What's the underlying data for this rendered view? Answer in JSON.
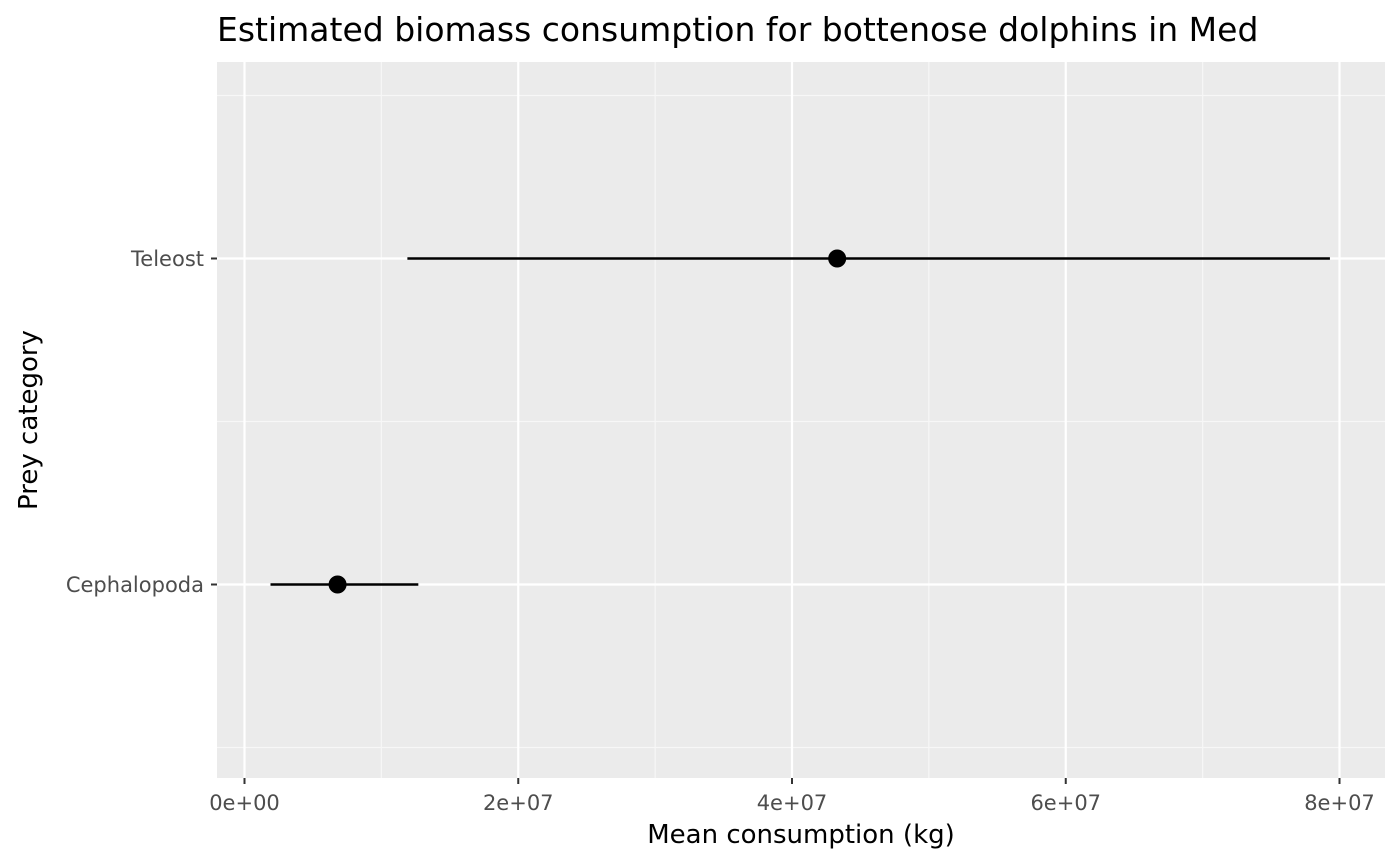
{
  "chart_data": {
    "type": "pointrange",
    "title": "Estimated biomass consumption for bottenose dolphins in Med",
    "xlabel": "Mean consumption (kg)",
    "ylabel": "Prey category",
    "orientation": "horizontal",
    "xlim": [
      -2000000,
      83000000
    ],
    "x_ticks": [
      0,
      20000000,
      40000000,
      60000000,
      80000000
    ],
    "x_tick_labels": [
      "0e+00",
      "2e+07",
      "4e+07",
      "6e+07",
      "8e+07"
    ],
    "categories": [
      "Cephalopoda",
      "Teleost"
    ],
    "points": [
      {
        "category": "Cephalopoda",
        "mean": 6800000,
        "lower": 1900000,
        "upper": 12700000
      },
      {
        "category": "Teleost",
        "mean": 43300000,
        "lower": 11900000,
        "upper": 79300000
      }
    ],
    "grid": true,
    "legend": "none",
    "colors": {
      "panel_background": "#ebebeb",
      "grid_major": "#ffffff",
      "grid_minor": "#f7f7f7",
      "point": "#000000",
      "tick": "#333333"
    }
  }
}
